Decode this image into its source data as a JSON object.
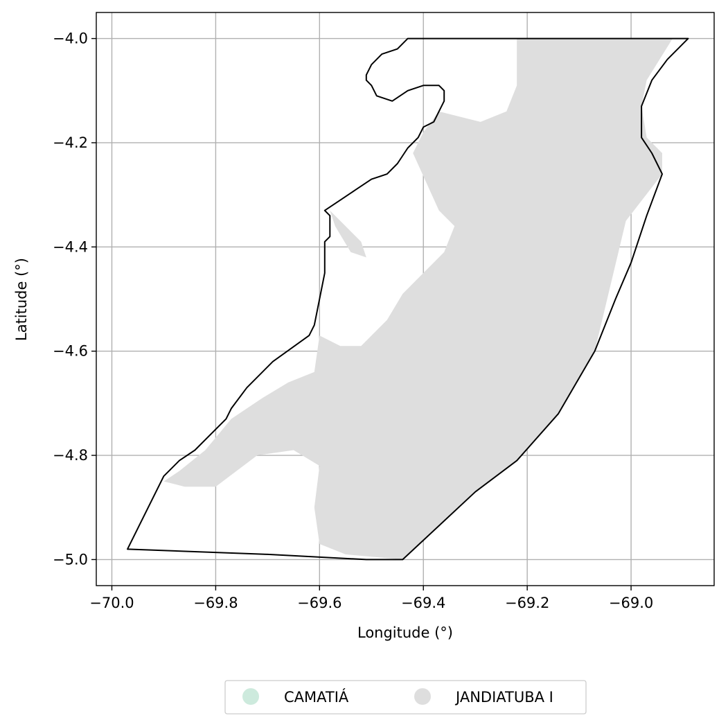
{
  "chart_data": {
    "type": "map",
    "xlabel": "Longitude (°)",
    "ylabel": "Latitude (°)",
    "xlim": [
      -70.03,
      -68.84
    ],
    "ylim": [
      -5.05,
      -3.95
    ],
    "xticks": [
      -70.0,
      -69.8,
      -69.6,
      -69.4,
      -69.2,
      -69.0
    ],
    "yticks": [
      -4.0,
      -4.2,
      -4.4,
      -4.6,
      -4.8,
      -5.0
    ],
    "xtick_labels": [
      "−70.0",
      "−69.8",
      "−69.6",
      "−69.4",
      "−69.2",
      "−69.0"
    ],
    "ytick_labels": [
      "−4.0",
      "−4.2",
      "−4.4",
      "−4.6",
      "−4.8",
      "−5.0"
    ],
    "grid": true,
    "legend_position": "bottom-center",
    "legend": [
      {
        "name": "CAMATIÁ",
        "color": "#cdeadd"
      },
      {
        "name": "JANDIATUBA I",
        "color": "#dedede"
      }
    ],
    "layers": [
      {
        "name": "JANDIATUBA I",
        "type": "filled-area",
        "color": "#dedede",
        "polygons": [
          [
            [
              -69.9,
              -4.85
            ],
            [
              -69.87,
              -4.83
            ],
            [
              -69.82,
              -4.79
            ],
            [
              -69.77,
              -4.73
            ],
            [
              -69.71,
              -4.69
            ],
            [
              -69.66,
              -4.66
            ],
            [
              -69.61,
              -4.64
            ],
            [
              -69.6,
              -4.57
            ],
            [
              -69.56,
              -4.59
            ],
            [
              -69.52,
              -4.59
            ],
            [
              -69.47,
              -4.54
            ],
            [
              -69.44,
              -4.49
            ],
            [
              -69.4,
              -4.45
            ],
            [
              -69.36,
              -4.41
            ],
            [
              -69.34,
              -4.36
            ],
            [
              -69.37,
              -4.33
            ],
            [
              -69.42,
              -4.22
            ],
            [
              -69.4,
              -4.18
            ],
            [
              -69.37,
              -4.14
            ],
            [
              -69.33,
              -4.15
            ],
            [
              -69.29,
              -4.16
            ],
            [
              -69.24,
              -4.14
            ],
            [
              -69.22,
              -4.09
            ],
            [
              -69.22,
              -4.0
            ],
            [
              -69.0,
              -4.0
            ],
            [
              -68.92,
              -4.0
            ],
            [
              -68.97,
              -4.08
            ],
            [
              -68.98,
              -4.13
            ],
            [
              -68.97,
              -4.19
            ],
            [
              -68.94,
              -4.22
            ],
            [
              -68.94,
              -4.26
            ],
            [
              -69.01,
              -4.35
            ],
            [
              -69.07,
              -4.6
            ],
            [
              -69.14,
              -4.72
            ],
            [
              -69.22,
              -4.81
            ],
            [
              -69.3,
              -4.87
            ],
            [
              -69.44,
              -5.0
            ],
            [
              -69.55,
              -4.99
            ],
            [
              -69.6,
              -4.97
            ],
            [
              -69.61,
              -4.9
            ],
            [
              -69.6,
              -4.82
            ],
            [
              -69.65,
              -4.79
            ],
            [
              -69.72,
              -4.8
            ],
            [
              -69.8,
              -4.86
            ],
            [
              -69.86,
              -4.86
            ]
          ],
          [
            [
              -69.58,
              -4.33
            ],
            [
              -69.55,
              -4.36
            ],
            [
              -69.52,
              -4.39
            ],
            [
              -69.51,
              -4.42
            ],
            [
              -69.54,
              -4.41
            ],
            [
              -69.57,
              -4.36
            ]
          ]
        ]
      },
      {
        "name": "CAMATIÁ",
        "type": "outline",
        "color": "#000000",
        "polygon": [
          [
            -69.97,
            -4.98
          ],
          [
            -69.9,
            -4.84
          ],
          [
            -69.87,
            -4.81
          ],
          [
            -69.84,
            -4.79
          ],
          [
            -69.78,
            -4.73
          ],
          [
            -69.77,
            -4.71
          ],
          [
            -69.74,
            -4.67
          ],
          [
            -69.69,
            -4.62
          ],
          [
            -69.62,
            -4.57
          ],
          [
            -69.61,
            -4.55
          ],
          [
            -69.59,
            -4.45
          ],
          [
            -69.59,
            -4.39
          ],
          [
            -69.58,
            -4.38
          ],
          [
            -69.58,
            -4.34
          ],
          [
            -69.59,
            -4.33
          ],
          [
            -69.56,
            -4.31
          ],
          [
            -69.53,
            -4.29
          ],
          [
            -69.5,
            -4.27
          ],
          [
            -69.47,
            -4.26
          ],
          [
            -69.45,
            -4.24
          ],
          [
            -69.43,
            -4.21
          ],
          [
            -69.41,
            -4.19
          ],
          [
            -69.4,
            -4.17
          ],
          [
            -69.38,
            -4.16
          ],
          [
            -69.37,
            -4.14
          ],
          [
            -69.36,
            -4.12
          ],
          [
            -69.36,
            -4.1
          ],
          [
            -69.37,
            -4.09
          ],
          [
            -69.4,
            -4.09
          ],
          [
            -69.43,
            -4.1
          ],
          [
            -69.46,
            -4.12
          ],
          [
            -69.49,
            -4.11
          ],
          [
            -69.5,
            -4.09
          ],
          [
            -69.51,
            -4.08
          ],
          [
            -69.51,
            -4.07
          ],
          [
            -69.5,
            -4.05
          ],
          [
            -69.48,
            -4.03
          ],
          [
            -69.45,
            -4.02
          ],
          [
            -69.43,
            -4.0
          ],
          [
            -69.41,
            -4.0
          ],
          [
            -69.25,
            -4.0
          ],
          [
            -68.89,
            -4.0
          ],
          [
            -68.93,
            -4.04
          ],
          [
            -68.96,
            -4.08
          ],
          [
            -68.98,
            -4.13
          ],
          [
            -68.98,
            -4.19
          ],
          [
            -68.96,
            -4.22
          ],
          [
            -68.94,
            -4.26
          ],
          [
            -68.97,
            -4.34
          ],
          [
            -69.0,
            -4.43
          ],
          [
            -69.03,
            -4.5
          ],
          [
            -69.07,
            -4.6
          ],
          [
            -69.14,
            -4.72
          ],
          [
            -69.22,
            -4.81
          ],
          [
            -69.3,
            -4.87
          ],
          [
            -69.44,
            -5.0
          ],
          [
            -69.51,
            -5.0
          ],
          [
            -69.7,
            -4.99
          ]
        ]
      }
    ]
  }
}
